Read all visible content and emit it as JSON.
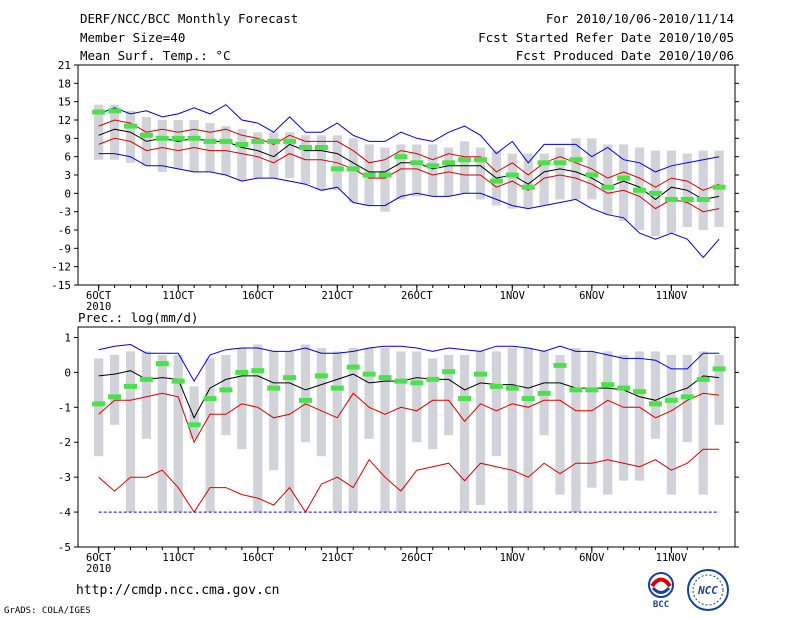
{
  "header": {
    "title": "DERF/NCC/BCC Monthly Forecast",
    "member_size": "Member Size=40",
    "variable": "Mean Surf. Temp.: °C",
    "period": "For 2010/10/06-2010/11/14",
    "started": "Fcst Started Refer Date 2010/10/05",
    "produced": "Fcst Produced Date 2010/10/06"
  },
  "footer": {
    "url": "http://cmdp.ncc.cma.gov.cn",
    "grads": "GrADS: COLA/IGES"
  },
  "logos": {
    "bcc": "BCC",
    "ncc": "NCC"
  },
  "colors": {
    "bar": "#d2d3d8",
    "observed": "#4ce14c",
    "max": "#0000dd",
    "pct": "#d80000",
    "mean": "#000000",
    "floor": "#0000dd"
  },
  "chart_data": [
    {
      "type": "line",
      "title": "Mean Surf. Temp.: °C",
      "ylabel": "°C",
      "ylim": [
        -15,
        21
      ],
      "yticks": [
        21,
        18,
        15,
        12,
        9,
        6,
        3,
        0,
        -3,
        -6,
        -9,
        -12,
        -15
      ],
      "x": [
        6,
        7,
        8,
        9,
        10,
        11,
        12,
        13,
        14,
        15,
        16,
        17,
        18,
        19,
        20,
        21,
        22,
        23,
        24,
        25,
        26,
        27,
        28,
        29,
        30,
        31,
        32,
        33,
        34,
        35,
        36,
        37,
        38,
        39,
        40,
        41,
        42,
        43,
        44,
        45
      ],
      "xticks": [
        {
          "day": 6,
          "label": "6OCT",
          "sub": "2010"
        },
        {
          "day": 11,
          "label": "11OCT"
        },
        {
          "day": 16,
          "label": "16OCT"
        },
        {
          "day": 21,
          "label": "21OCT"
        },
        {
          "day": 26,
          "label": "26OCT"
        },
        {
          "day": 32,
          "label": "1NOV"
        },
        {
          "day": 37,
          "label": "6NOV"
        },
        {
          "day": 42,
          "label": "11NOV"
        }
      ],
      "series": [
        {
          "name": "ensemble range top",
          "role": "bar_top",
          "values": [
            14.5,
            14.5,
            13.5,
            12.5,
            12,
            12,
            12,
            11.5,
            11,
            10.5,
            10,
            10,
            10,
            9.5,
            9.5,
            9.5,
            9,
            8,
            7.5,
            8,
            8,
            8,
            7.5,
            8.5,
            7.5,
            7,
            6.5,
            6.5,
            6.5,
            7.5,
            9,
            9,
            8,
            8,
            7.5,
            7,
            7,
            6.5,
            7,
            7
          ]
        },
        {
          "name": "ensemble range bottom",
          "role": "bar_bottom",
          "values": [
            5.5,
            5.5,
            5,
            4.5,
            3.5,
            4,
            3.5,
            3.5,
            3,
            2,
            2.5,
            2.5,
            2.5,
            1.5,
            0.5,
            0.5,
            -1.5,
            -2,
            -3,
            -1,
            -0.5,
            -0.5,
            -0.5,
            0,
            -1,
            -2,
            -2.5,
            -2.5,
            -2,
            -1,
            -1,
            -1,
            -3.5,
            -4.5,
            -6,
            -7,
            -6.5,
            -5.5,
            -6,
            -5.5
          ]
        },
        {
          "name": "observed",
          "role": "marker",
          "values": [
            13.3,
            13.5,
            11,
            9.5,
            9,
            9,
            9,
            8.5,
            8.5,
            8,
            8.5,
            8.5,
            8.5,
            7.5,
            7.5,
            4,
            4,
            3,
            3,
            6,
            5,
            4.5,
            5,
            5.5,
            5.5,
            2,
            3,
            1,
            5,
            5,
            5.5,
            3,
            1,
            2.5,
            0.5,
            0,
            -1,
            -1,
            -1,
            1
          ]
        },
        {
          "name": "max",
          "role": "line",
          "color": "max",
          "values": [
            13,
            14,
            13,
            13.5,
            12.5,
            13,
            14,
            13,
            14.5,
            12,
            11.5,
            10,
            12.5,
            10,
            10,
            11.5,
            9.5,
            8.5,
            8.5,
            10,
            9,
            8.5,
            10,
            11,
            9.5,
            6.5,
            8.5,
            5,
            8,
            8,
            8,
            6,
            7.5,
            5.5,
            5,
            3.5,
            4.5,
            5,
            5.5,
            6
          ]
        },
        {
          "name": "90th pct",
          "role": "line",
          "color": "pct",
          "values": [
            11,
            12,
            11.5,
            10,
            10.5,
            10,
            10.5,
            10,
            10.5,
            9.5,
            9,
            8,
            9.5,
            8.5,
            8.5,
            8.5,
            7,
            5,
            5.5,
            7,
            6.5,
            5.5,
            6.5,
            6,
            6,
            3.5,
            5,
            3,
            5,
            6,
            5,
            4,
            2.5,
            3.5,
            2.5,
            1,
            2.5,
            2,
            0.5,
            1.5
          ]
        },
        {
          "name": "mean",
          "role": "line",
          "color": "mean",
          "values": [
            9.5,
            10.5,
            10,
            8.5,
            9,
            8.5,
            9,
            8.5,
            8.5,
            7.5,
            7,
            6,
            8,
            7,
            7,
            6.5,
            5,
            3.5,
            3.5,
            5,
            5,
            4,
            4.5,
            4.5,
            4.5,
            2.5,
            3,
            1.5,
            3.5,
            4,
            3.5,
            2.5,
            1,
            2,
            1,
            -1,
            1,
            0.5,
            -1,
            -0.5
          ]
        },
        {
          "name": "10th pct",
          "role": "line",
          "color": "pct",
          "values": [
            8,
            9,
            8.5,
            7,
            7.5,
            7,
            7.5,
            7,
            7,
            6.5,
            6,
            5,
            6.5,
            5.5,
            5.5,
            5,
            4,
            2.5,
            2.5,
            4,
            4,
            3,
            3.5,
            3,
            3,
            1,
            2,
            0.5,
            2.5,
            3,
            2.5,
            1.5,
            0,
            0.5,
            -0.5,
            -2.5,
            -1,
            -1.5,
            -3,
            -2.5
          ]
        },
        {
          "name": "min",
          "role": "line",
          "color": "max",
          "values": [
            6.5,
            6.5,
            6,
            4.5,
            4.5,
            4,
            3.5,
            3.5,
            3,
            2,
            2.5,
            2.5,
            2,
            1.5,
            0.5,
            1,
            -1.5,
            -2,
            -2,
            -0.5,
            0,
            -0.5,
            -0.5,
            0,
            0,
            -1,
            -2,
            -2.5,
            -2,
            -1.5,
            -1,
            -2.5,
            -3.5,
            -4,
            -6.5,
            -7.5,
            -6.5,
            -7.5,
            -10.5,
            -7.5
          ]
        }
      ]
    },
    {
      "type": "line",
      "title": "Prec.: log(mm/d)",
      "ylabel": "log(mm/d)",
      "ylim": [
        -5,
        1.3
      ],
      "yticks": [
        1,
        0,
        -1,
        -2,
        -3,
        -4,
        -5
      ],
      "x": [
        6,
        7,
        8,
        9,
        10,
        11,
        12,
        13,
        14,
        15,
        16,
        17,
        18,
        19,
        20,
        21,
        22,
        23,
        24,
        25,
        26,
        27,
        28,
        29,
        30,
        31,
        32,
        33,
        34,
        35,
        36,
        37,
        38,
        39,
        40,
        41,
        42,
        43,
        44,
        45
      ],
      "xticks": [
        {
          "day": 6,
          "label": "6OCT",
          "sub": "2010"
        },
        {
          "day": 11,
          "label": "11OCT"
        },
        {
          "day": 16,
          "label": "16OCT"
        },
        {
          "day": 21,
          "label": "21OCT"
        },
        {
          "day": 26,
          "label": "26OCT"
        },
        {
          "day": 32,
          "label": "1NOV"
        },
        {
          "day": 37,
          "label": "6NOV"
        },
        {
          "day": 42,
          "label": "11NOV"
        }
      ],
      "series": [
        {
          "name": "ensemble range top",
          "role": "bar_top",
          "values": [
            0.4,
            0.5,
            0.6,
            0.6,
            0.5,
            0.5,
            -0.4,
            0.4,
            0.5,
            0.7,
            0.8,
            0.6,
            0.6,
            0.8,
            0.7,
            0.6,
            0.7,
            0.7,
            0.7,
            0.6,
            0.6,
            0.4,
            0.5,
            0.5,
            0.6,
            0.6,
            0.7,
            0.7,
            0.6,
            0.5,
            0.7,
            0.6,
            0.6,
            0.5,
            0.6,
            0.6,
            0.5,
            0.5,
            0.6,
            0.5
          ]
        },
        {
          "name": "ensemble range bottom",
          "role": "bar_bottom",
          "values": [
            -2.4,
            -1.5,
            -4,
            -1.9,
            -4,
            -4,
            -1.9,
            -4,
            -1.8,
            -2.2,
            -4,
            -2.8,
            -4,
            -2,
            -2.4,
            -4,
            -4,
            -1.9,
            -4,
            -4,
            -2,
            -2.2,
            -1.8,
            -4,
            -3.8,
            -2.4,
            -4,
            -4,
            -1.8,
            -3.5,
            -4,
            -3.3,
            -3.5,
            -3.1,
            -3.1,
            -1.9,
            -3.5,
            -2,
            -3.5,
            -1.5
          ]
        },
        {
          "name": "observed",
          "role": "marker",
          "values": [
            -0.9,
            -0.7,
            -0.4,
            -0.2,
            0.25,
            -0.25,
            -1.5,
            -0.75,
            -0.5,
            0,
            0.05,
            -0.45,
            -0.15,
            -0.8,
            -0.1,
            -0.45,
            0.15,
            -0.05,
            -0.15,
            -0.25,
            -0.3,
            -0.2,
            0.02,
            -0.75,
            -0.05,
            -0.4,
            -0.45,
            -0.75,
            -0.6,
            0.2,
            -0.5,
            -0.5,
            -0.35,
            -0.45,
            -0.55,
            -0.9,
            -0.8,
            -0.7,
            -0.2,
            0.1
          ]
        },
        {
          "name": "max",
          "role": "line",
          "color": "max",
          "values": [
            0.65,
            0.75,
            0.8,
            0.55,
            0.55,
            0.55,
            -0.25,
            0.5,
            0.65,
            0.7,
            0.7,
            0.6,
            0.6,
            0.7,
            0.55,
            0.55,
            0.6,
            0.7,
            0.75,
            0.75,
            0.7,
            0.6,
            0.7,
            0.65,
            0.6,
            0.75,
            0.75,
            0.7,
            0.6,
            0.75,
            0.6,
            0.6,
            0.5,
            0.4,
            0.4,
            0.35,
            0.1,
            0.1,
            0.55,
            0.55
          ]
        },
        {
          "name": "90th pct",
          "role": "line",
          "color": "pct",
          "values": [
            -1.2,
            -0.8,
            -0.8,
            -0.7,
            -0.6,
            -0.7,
            -2,
            -1.2,
            -1.2,
            -0.9,
            -1,
            -1.3,
            -1.2,
            -0.9,
            -1.1,
            -1.3,
            -0.6,
            -1,
            -1.2,
            -1,
            -1.1,
            -0.8,
            -0.8,
            -1.4,
            -0.9,
            -1.1,
            -0.9,
            -1,
            -0.8,
            -0.8,
            -1.1,
            -1.1,
            -0.8,
            -1,
            -1,
            -1.3,
            -1.1,
            -0.8,
            -0.6,
            -0.65
          ]
        },
        {
          "name": "mean",
          "role": "line",
          "color": "mean",
          "values": [
            -0.1,
            -0.05,
            0.05,
            -0.2,
            -0.15,
            -0.2,
            -1.3,
            -0.45,
            -0.2,
            -0.1,
            -0.1,
            -0.3,
            -0.3,
            -0.5,
            -0.35,
            -0.2,
            -0.05,
            -0.3,
            -0.25,
            -0.25,
            -0.15,
            -0.2,
            -0.2,
            -0.5,
            -0.3,
            -0.35,
            -0.35,
            -0.45,
            -0.3,
            -0.3,
            -0.45,
            -0.45,
            -0.45,
            -0.5,
            -0.7,
            -0.8,
            -0.6,
            -0.45,
            -0.1,
            -0.15
          ]
        },
        {
          "name": "10th pct",
          "role": "line",
          "color": "pct",
          "values": [
            -3,
            -3.4,
            -3,
            -3,
            -2.8,
            -3.3,
            -4,
            -3.3,
            -3.3,
            -3.5,
            -3.6,
            -3.8,
            -3.3,
            -4,
            -3.2,
            -3,
            -3.3,
            -2.5,
            -3,
            -3.4,
            -2.8,
            -2.7,
            -2.6,
            -3.1,
            -2.6,
            -2.7,
            -2.8,
            -3,
            -2.6,
            -2.9,
            -2.6,
            -2.6,
            -2.5,
            -2.6,
            -2.7,
            -2.5,
            -2.8,
            -2.6,
            -2.2,
            -2.2
          ]
        },
        {
          "name": "min",
          "role": "floor",
          "color": "floor",
          "values": [
            -4,
            -4,
            -4,
            -4,
            -4,
            -4,
            -4,
            -4,
            -4,
            -4,
            -4,
            -4,
            -4,
            -4,
            -4,
            -4,
            -4,
            -4,
            -4,
            -4,
            -4,
            -4,
            -4,
            -4,
            -4,
            -4,
            -4,
            -4,
            -4,
            -4,
            -4,
            -4,
            -4,
            -4,
            -4,
            -4,
            -4,
            -4,
            -4,
            -4
          ]
        }
      ]
    }
  ]
}
